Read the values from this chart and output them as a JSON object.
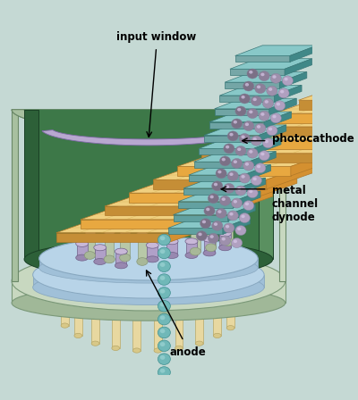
{
  "bg_color": "#c5d9d4",
  "labels": {
    "input_window": "input window",
    "photocathode": "photocathode",
    "metal_channel_dynode": "metal\nchannel\ndynode",
    "anode": "anode"
  },
  "colors": {
    "outer_shell_light": "#c8d8c0",
    "outer_shell_mid": "#a8c0a0",
    "outer_shell_dark": "#7a9878",
    "outer_shell_edge": "#6a8868",
    "inner_wall_dark": "#2d6038",
    "inner_wall_mid": "#3d7848",
    "inner_wall_light": "#5a9060",
    "base_disk_top": "#b8d4e8",
    "base_disk_mid": "#a0c0d8",
    "base_disk_edge": "#88a8c0",
    "base_rim_light": "#c8d8c0",
    "base_rim_dark": "#a0b898",
    "dynode_orange1": "#e8a840",
    "dynode_orange2": "#d49030",
    "dynode_top": "#f0d080",
    "dynode_cream": "#f5e8b0",
    "channel_teal1": "#60a8a8",
    "channel_teal2": "#4888a0",
    "channel_purple": "#a898c0",
    "channel_purple2": "#c0b0d8",
    "sphere_teal": "#70b8b8",
    "sphere_light": "#98d0d0",
    "pin_tan": "#d8c888",
    "pin_light": "#e8d8a0",
    "pin_shadow": "#b8a868",
    "stump_green": "#a8c0a0",
    "stump_purple": "#b0a0c8",
    "stump_purple2": "#c8b8d8",
    "photocathode_purple": "#b8a8d0",
    "photocathode_light": "#d8c8e8",
    "window_purple": "#c0b0d8",
    "window_inner": "#e8d8f0"
  }
}
